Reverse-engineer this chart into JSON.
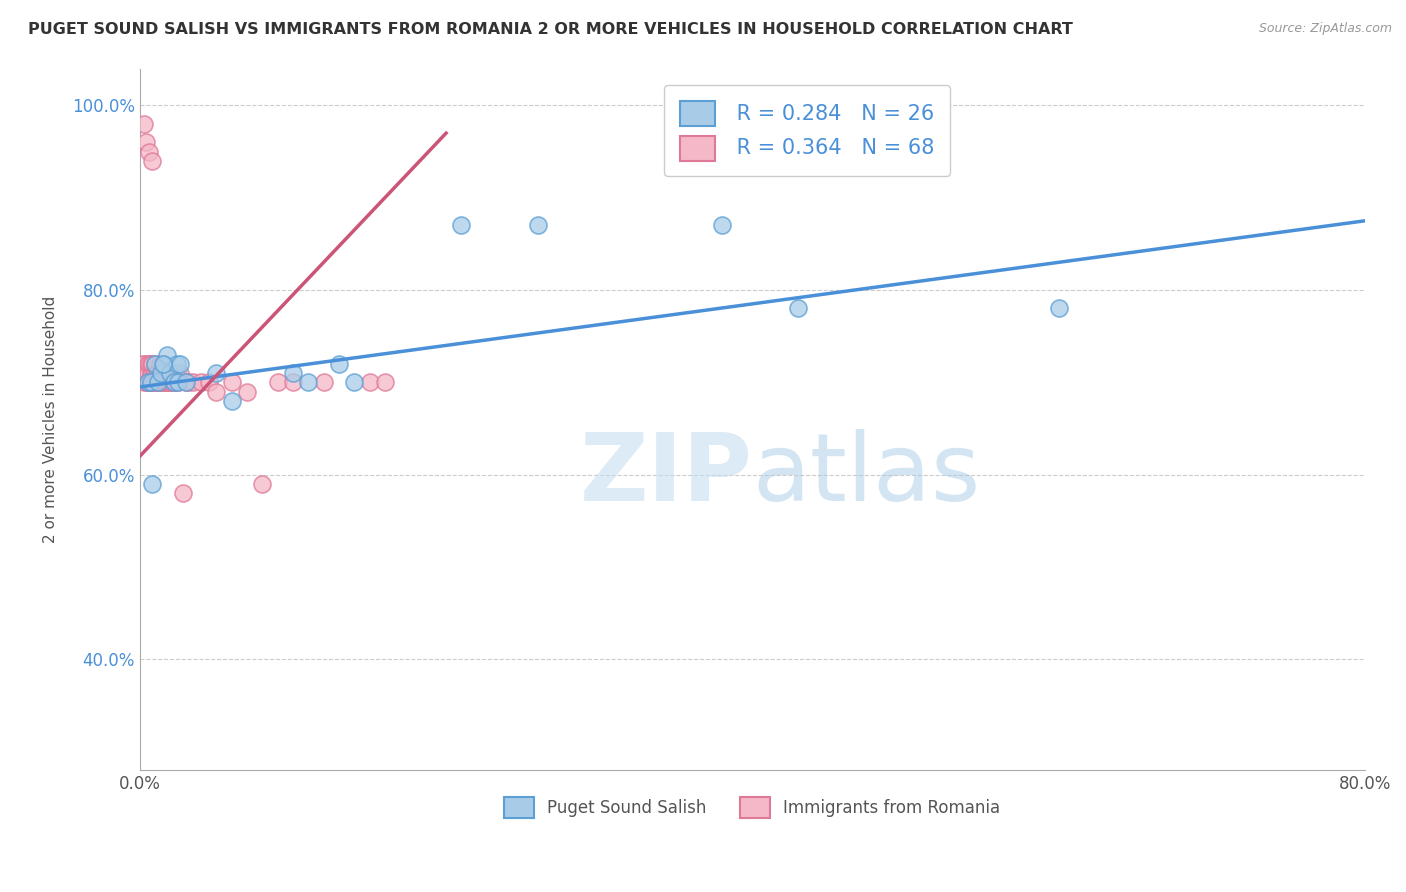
{
  "title": "PUGET SOUND SALISH VS IMMIGRANTS FROM ROMANIA 2 OR MORE VEHICLES IN HOUSEHOLD CORRELATION CHART",
  "source": "Source: ZipAtlas.com",
  "ylabel": "2 or more Vehicles in Household",
  "watermark_zip": "ZIP",
  "watermark_atlas": "atlas",
  "legend_blue_r": "R = 0.284",
  "legend_blue_n": "N = 26",
  "legend_pink_r": "R = 0.364",
  "legend_pink_n": "N = 68",
  "legend_label_blue": "Puget Sound Salish",
  "legend_label_pink": "Immigrants from Romania",
  "xmin": 0.0,
  "xmax": 0.8,
  "ymin": 0.28,
  "ymax": 1.04,
  "yticks": [
    0.4,
    0.6,
    0.8,
    1.0
  ],
  "ytick_labels": [
    "40.0%",
    "60.0%",
    "80.0%",
    "100.0%"
  ],
  "xticks": [
    0.0,
    0.1,
    0.2,
    0.3,
    0.4,
    0.5,
    0.6,
    0.7,
    0.8
  ],
  "xtick_labels": [
    "0.0%",
    "",
    "",
    "",
    "",
    "",
    "",
    "",
    "80.0%"
  ],
  "blue_color": "#a8cce8",
  "pink_color": "#f4b8c8",
  "blue_edge": "#5b9fd4",
  "pink_edge": "#e07898",
  "trend_blue": "#4a90d9",
  "trend_pink": "#cc5577",
  "diag_color": "#cccccc",
  "grid_color": "#cccccc",
  "title_color": "#333333",
  "axis_label_color": "#555555",
  "r_n_color": "#4a90d9",
  "blue_scatter_x": [
    0.005,
    0.007,
    0.01,
    0.012,
    0.014,
    0.016,
    0.018,
    0.02,
    0.022,
    0.024,
    0.025,
    0.026,
    0.03,
    0.05,
    0.06,
    0.1,
    0.11,
    0.13,
    0.14,
    0.21,
    0.26,
    0.38,
    0.43,
    0.6,
    0.008,
    0.015
  ],
  "blue_scatter_y": [
    0.7,
    0.7,
    0.72,
    0.7,
    0.71,
    0.72,
    0.73,
    0.71,
    0.7,
    0.72,
    0.7,
    0.72,
    0.7,
    0.71,
    0.68,
    0.71,
    0.7,
    0.72,
    0.7,
    0.87,
    0.87,
    0.87,
    0.78,
    0.78,
    0.59,
    0.72
  ],
  "pink_scatter_x": [
    0.002,
    0.003,
    0.003,
    0.004,
    0.004,
    0.005,
    0.005,
    0.005,
    0.006,
    0.006,
    0.007,
    0.007,
    0.007,
    0.008,
    0.008,
    0.008,
    0.009,
    0.009,
    0.01,
    0.01,
    0.01,
    0.011,
    0.011,
    0.012,
    0.012,
    0.013,
    0.013,
    0.013,
    0.014,
    0.014,
    0.015,
    0.015,
    0.015,
    0.016,
    0.016,
    0.017,
    0.017,
    0.018,
    0.018,
    0.019,
    0.02,
    0.02,
    0.021,
    0.022,
    0.022,
    0.023,
    0.024,
    0.025,
    0.026,
    0.028,
    0.03,
    0.032,
    0.035,
    0.04,
    0.045,
    0.05,
    0.06,
    0.07,
    0.08,
    0.09,
    0.1,
    0.12,
    0.15,
    0.16,
    0.003,
    0.004,
    0.006,
    0.008
  ],
  "pink_scatter_y": [
    0.72,
    0.7,
    0.72,
    0.7,
    0.71,
    0.7,
    0.72,
    0.71,
    0.7,
    0.72,
    0.7,
    0.71,
    0.72,
    0.7,
    0.71,
    0.72,
    0.7,
    0.71,
    0.7,
    0.71,
    0.72,
    0.7,
    0.71,
    0.7,
    0.71,
    0.7,
    0.71,
    0.72,
    0.7,
    0.71,
    0.7,
    0.71,
    0.72,
    0.7,
    0.71,
    0.7,
    0.71,
    0.7,
    0.71,
    0.7,
    0.7,
    0.71,
    0.7,
    0.71,
    0.7,
    0.7,
    0.71,
    0.7,
    0.71,
    0.58,
    0.7,
    0.7,
    0.7,
    0.7,
    0.7,
    0.69,
    0.7,
    0.69,
    0.59,
    0.7,
    0.7,
    0.7,
    0.7,
    0.7,
    0.98,
    0.96,
    0.95,
    0.94
  ],
  "blue_trend_x0": 0.0,
  "blue_trend_x1": 0.8,
  "blue_trend_y0": 0.695,
  "blue_trend_y1": 0.875,
  "pink_trend_x0": 0.0,
  "pink_trend_x1": 0.2,
  "pink_trend_y0": 0.62,
  "pink_trend_y1": 0.97
}
